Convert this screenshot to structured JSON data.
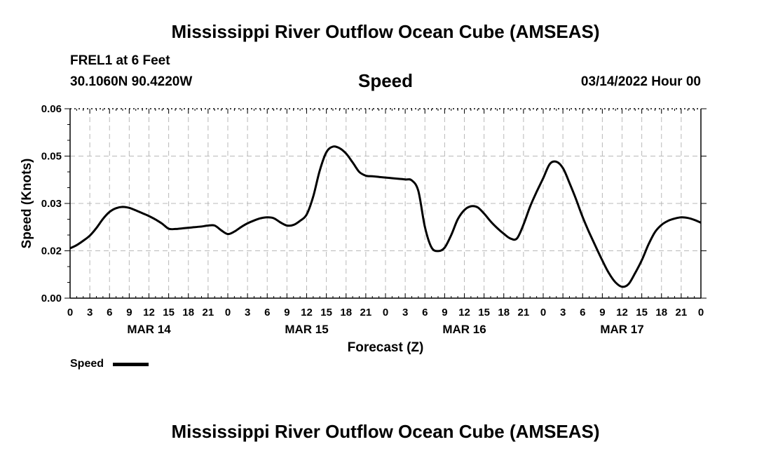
{
  "page": {
    "title_top": "Mississippi River Outflow Ocean Cube (AMSEAS)",
    "title_bottom": "Mississippi River Outflow Ocean Cube (AMSEAS)",
    "station": "FREL1 at 6 Feet",
    "coords": "30.1060N  90.4220W",
    "variable": "Speed",
    "datetime": "03/14/2022 Hour 00"
  },
  "chart_data": {
    "type": "line",
    "title": "Speed",
    "xlabel": "Forecast (Z)",
    "ylabel": "Speed (Knots)",
    "ylim": [
      0,
      0.06
    ],
    "xlim": [
      0,
      96
    ],
    "yticks": [
      "0.00",
      "0.02",
      "0.03",
      "0.05",
      "0.06"
    ],
    "ytick_values": [
      0,
      0.015,
      0.03,
      0.045,
      0.06
    ],
    "xtick_labels": [
      "0",
      "3",
      "6",
      "9",
      "12",
      "15",
      "18",
      "21",
      "0",
      "3",
      "6",
      "9",
      "12",
      "15",
      "18",
      "21",
      "0",
      "3",
      "6",
      "9",
      "12",
      "15",
      "18",
      "21",
      "0",
      "3",
      "6",
      "9",
      "12",
      "15",
      "18",
      "21",
      "0"
    ],
    "day_labels": [
      {
        "label": "MAR 14",
        "hour": 12
      },
      {
        "label": "MAR 15",
        "hour": 36
      },
      {
        "label": "MAR 16",
        "hour": 60
      },
      {
        "label": "MAR 17",
        "hour": 84
      }
    ],
    "grid": true,
    "legend": {
      "position": "bottom-left",
      "entries": [
        "Speed"
      ]
    },
    "series": [
      {
        "name": "Speed",
        "color": "#000000",
        "x": [
          0,
          1,
          2,
          3,
          4,
          5,
          6,
          7,
          8,
          9,
          10,
          11,
          12,
          13,
          14,
          15,
          16,
          17,
          18,
          19,
          20,
          21,
          22,
          23,
          24,
          25,
          26,
          27,
          28,
          29,
          30,
          31,
          32,
          33,
          34,
          35,
          36,
          37,
          38,
          39,
          40,
          41,
          42,
          43,
          44,
          45,
          46,
          47,
          48,
          49,
          50,
          51,
          52,
          53,
          54,
          55,
          56,
          57,
          58,
          59,
          60,
          61,
          62,
          63,
          64,
          65,
          66,
          67,
          68,
          69,
          70,
          71,
          72,
          73,
          74,
          75,
          76,
          77,
          78,
          79,
          80,
          81,
          82,
          83,
          84,
          85,
          86,
          87,
          88,
          89,
          90,
          91,
          92,
          93,
          94,
          95,
          96
        ],
        "y": [
          0.0158,
          0.0168,
          0.0182,
          0.0198,
          0.0222,
          0.0251,
          0.0273,
          0.0285,
          0.0289,
          0.0286,
          0.0278,
          0.0269,
          0.026,
          0.0249,
          0.0236,
          0.022,
          0.0219,
          0.0221,
          0.0223,
          0.0225,
          0.0227,
          0.023,
          0.023,
          0.0215,
          0.0203,
          0.0211,
          0.0225,
          0.0237,
          0.0246,
          0.0253,
          0.0256,
          0.0253,
          0.024,
          0.023,
          0.0232,
          0.0245,
          0.0265,
          0.0322,
          0.0405,
          0.0462,
          0.048,
          0.0475,
          0.0458,
          0.043,
          0.04,
          0.0388,
          0.0386,
          0.0384,
          0.0382,
          0.038,
          0.0378,
          0.0376,
          0.0373,
          0.0339,
          0.0225,
          0.0161,
          0.0149,
          0.016,
          0.02,
          0.025,
          0.0279,
          0.0291,
          0.0288,
          0.0268,
          0.0243,
          0.0222,
          0.0204,
          0.0189,
          0.0189,
          0.0233,
          0.029,
          0.0337,
          0.038,
          0.0425,
          0.0432,
          0.0412,
          0.0365,
          0.0313,
          0.0257,
          0.0208,
          0.0163,
          0.0119,
          0.0079,
          0.005,
          0.0036,
          0.0045,
          0.008,
          0.012,
          0.0169,
          0.0209,
          0.0232,
          0.0245,
          0.0252,
          0.0256,
          0.0254,
          0.0248,
          0.0239
        ]
      }
    ]
  }
}
